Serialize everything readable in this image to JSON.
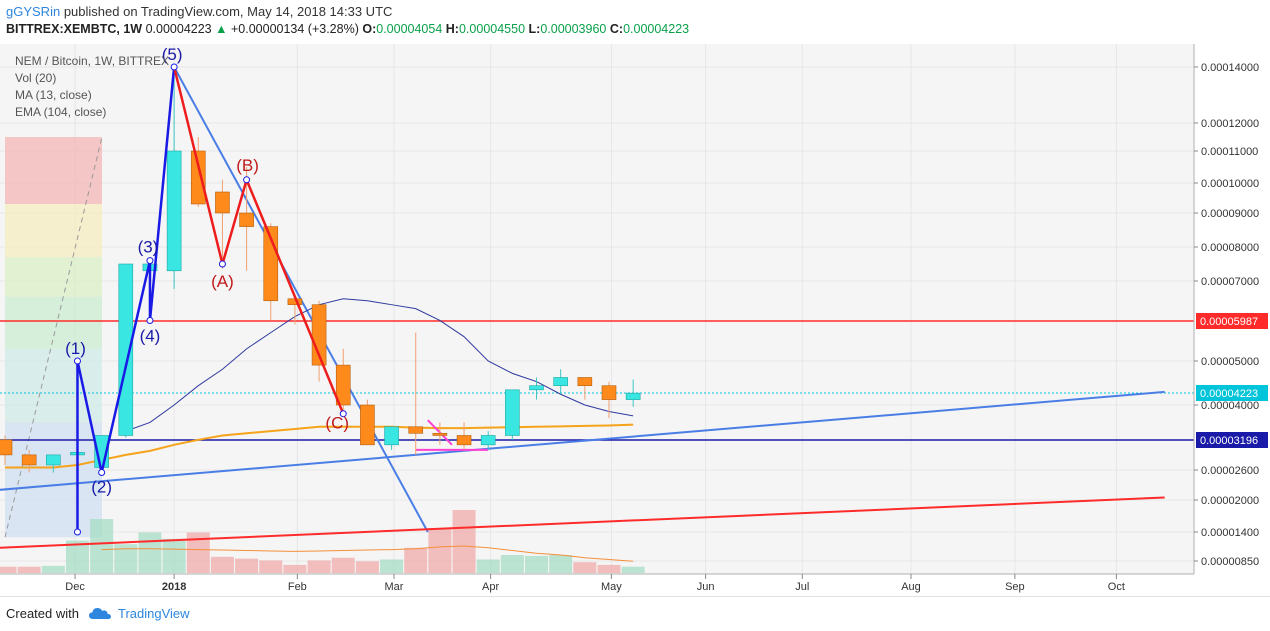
{
  "header": {
    "author": "gGYSRin",
    "published": "published on TradingView.com, May 14, 2018 14:33 UTC",
    "symbol": "BITTREX:XEMBTC, 1W",
    "last": "0.00004223",
    "arrow": "▲",
    "change": "+0.00000134 (+3.28%)",
    "o_label": "O:",
    "o_value": "0.00004054",
    "h_label": "H:",
    "h_value": "0.00004550",
    "l_label": "L:",
    "l_value": "0.00003960",
    "c_label": "C:",
    "c_value": "0.00004223"
  },
  "legend": [
    "NEM / Bitcoin, 1W, BITTREX",
    "Vol (20)",
    "MA (13, close)",
    "EMA (104, close)"
  ],
  "footer": {
    "created_with": "Created with",
    "brand": "TradingView",
    "logo_icon": "cloud-icon"
  },
  "chart_data": {
    "type": "candlestick",
    "timeframe": "1W",
    "x_ticks": [
      "Dec",
      "2018",
      "Feb",
      "Mar",
      "Apr",
      "May",
      "Jun",
      "Jul",
      "Aug",
      "Sep",
      "Oct"
    ],
    "y_ticks": [
      "0.00014000",
      "0.00012000",
      "0.00011000",
      "0.00010000",
      "0.00009000",
      "0.00008000",
      "0.00007000",
      "0.00005000",
      "0.00004000",
      "0.00002600",
      "0.00002000",
      "0.00001400",
      "0.00000850"
    ],
    "price_labels": [
      {
        "text": "0.00005987",
        "color": "#ff2b2b"
      },
      {
        "text": "0.00004223",
        "color": "#00c4d9"
      },
      {
        "text": "0.00003196",
        "color": "#1a1aa8"
      }
    ],
    "candles": [
      {
        "o": 32,
        "h": 33,
        "l": 27,
        "c": 29
      },
      {
        "o": 29,
        "h": 30,
        "l": 25.5,
        "c": 27
      },
      {
        "o": 27,
        "h": 29,
        "l": 25.5,
        "c": 29
      },
      {
        "o": 29,
        "h": 50,
        "l": 14,
        "c": 29.5
      },
      {
        "o": 26.5,
        "h": 33,
        "l": 25.5,
        "c": 33
      },
      {
        "o": 33,
        "h": 75,
        "l": 32.5,
        "c": 75
      },
      {
        "o": 73,
        "h": 76,
        "l": 60,
        "c": 75
      },
      {
        "o": 73,
        "h": 140,
        "l": 68,
        "c": 110
      },
      {
        "o": 110,
        "h": 115,
        "l": 92,
        "c": 93
      },
      {
        "o": 97,
        "h": 101,
        "l": 75,
        "c": 90
      },
      {
        "o": 90,
        "h": 105,
        "l": 73,
        "c": 86
      },
      {
        "o": 86,
        "h": 87,
        "l": 60,
        "c": 65
      },
      {
        "o": 65.5,
        "h": 66,
        "l": 59,
        "c": 64
      },
      {
        "o": 64,
        "h": 65,
        "l": 45,
        "c": 49
      },
      {
        "o": 49,
        "h": 53,
        "l": 38,
        "c": 40
      },
      {
        "o": 40,
        "h": 41,
        "l": 31,
        "c": 31
      },
      {
        "o": 31,
        "h": 35,
        "l": 30,
        "c": 35
      },
      {
        "o": 35,
        "h": 57,
        "l": 29,
        "c": 33.5
      },
      {
        "o": 33.5,
        "h": 36,
        "l": 31,
        "c": 33
      },
      {
        "o": 33,
        "h": 36,
        "l": 30,
        "c": 31
      },
      {
        "o": 31,
        "h": 34,
        "l": 30,
        "c": 33
      },
      {
        "o": 33,
        "h": 43,
        "l": 32,
        "c": 43
      },
      {
        "o": 43,
        "h": 46,
        "l": 41,
        "c": 44
      },
      {
        "o": 44,
        "h": 48,
        "l": 42,
        "c": 46
      },
      {
        "o": 46,
        "h": 46,
        "l": 41,
        "c": 44
      },
      {
        "o": 44,
        "h": 45,
        "l": 37,
        "c": 41
      },
      {
        "o": 41,
        "h": 45.5,
        "l": 39.6,
        "c": 42.2
      }
    ],
    "volume": [
      7,
      7,
      8,
      36,
      60,
      32,
      45,
      38,
      45,
      18,
      16,
      14,
      9,
      14,
      17,
      13,
      15,
      28,
      50,
      70,
      15,
      20,
      19,
      20,
      12,
      9,
      7
    ],
    "ma_13": [
      null,
      null,
      null,
      null,
      null,
      34,
      36,
      40,
      44,
      48,
      53,
      57,
      61,
      64,
      65.5,
      65,
      64,
      63,
      60,
      56,
      50,
      47,
      45,
      42,
      40,
      38.5,
      37.5
    ],
    "ema_104": [
      26.5,
      26.5,
      26.5,
      27,
      28,
      29,
      29.8,
      31,
      32,
      33,
      33.5,
      34,
      34.5,
      35,
      35,
      35,
      35,
      34.8,
      34.7,
      34.7,
      34.8,
      34.9,
      35,
      35.1,
      35.2,
      35.3,
      35.5
    ],
    "ma_volume": [
      null,
      null,
      null,
      null,
      26,
      27,
      27,
      26.5,
      26,
      25.5,
      25,
      24.5,
      24,
      24.5,
      25,
      25.5,
      26,
      27,
      29,
      30,
      28,
      25,
      22,
      20,
      17,
      15,
      13
    ],
    "horizontal_lines": [
      {
        "price": 59.87,
        "color": "#ff2b2b"
      },
      {
        "price": 42.23,
        "color": "#00c4d9"
      },
      {
        "price": 31.96,
        "color": "#1a1aa8"
      }
    ],
    "trendlines": [
      {
        "color": "#4a7ee6",
        "from": [
          7,
          140
        ],
        "to": [
          17.5,
          14
        ]
      },
      {
        "color": "#4a7ee6",
        "from": [
          -0.3,
          22
        ],
        "to": [
          48,
          42.5
        ]
      },
      {
        "color": "#ff2b2b",
        "from": [
          -0.3,
          11
        ],
        "to": [
          48,
          20.5
        ]
      }
    ],
    "wave_labels": [
      {
        "text": "(1)",
        "bar": 3,
        "price": 50,
        "color": "#1a1aa8"
      },
      {
        "text": "(2)",
        "bar": 4,
        "price": 25.5,
        "color": "#1a1aa8"
      },
      {
        "text": "(3)",
        "bar": 6,
        "price": 76,
        "color": "#1a1aa8"
      },
      {
        "text": "(4)",
        "bar": 6,
        "price": 60,
        "color": "#1a1aa8"
      },
      {
        "text": "(5)",
        "bar": 7,
        "price": 140,
        "color": "#1a1aa8"
      },
      {
        "text": "(A)",
        "bar": 9,
        "price": 75,
        "color": "#c0191b"
      },
      {
        "text": "(B)",
        "bar": 10,
        "price": 101,
        "color": "#c0191b"
      },
      {
        "text": "(C)",
        "bar": 14,
        "price": 38,
        "color": "#c0191b"
      }
    ],
    "wave_impulse": [
      [
        3,
        14
      ],
      [
        3,
        50
      ],
      [
        4,
        25.5
      ],
      [
        6,
        76
      ],
      [
        6,
        60
      ],
      [
        7,
        140
      ]
    ],
    "wave_correction": [
      [
        7,
        140
      ],
      [
        9,
        75
      ],
      [
        10,
        101
      ],
      [
        14,
        38
      ]
    ],
    "pink_lines": [
      [
        [
          17.5,
          36.5
        ],
        [
          18.5,
          31
        ]
      ],
      [
        [
          17,
          30
        ],
        [
          20,
          30
        ]
      ]
    ],
    "fib_zones": [
      {
        "top": 115,
        "bottom": 93,
        "color": "#f4b5b5"
      },
      {
        "top": 93,
        "bottom": 77,
        "color": "#f6ecc0"
      },
      {
        "top": 77,
        "bottom": 66,
        "color": "#d9efc6"
      },
      {
        "top": 66,
        "bottom": 53,
        "color": "#c9ecd2"
      },
      {
        "top": 53,
        "bottom": 36,
        "color": "#cfe9e6"
      },
      {
        "top": 36,
        "bottom": 13,
        "color": "#cfdff0"
      }
    ]
  }
}
